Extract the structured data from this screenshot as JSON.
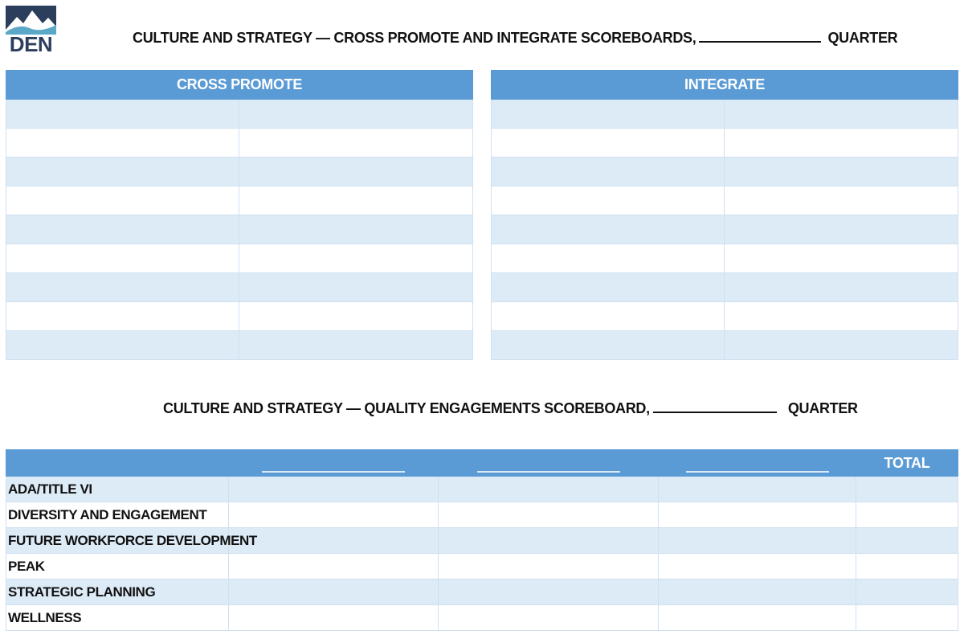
{
  "logo": {
    "text": "DEN",
    "colors": {
      "dark": "#2b3f5c",
      "accent": "#5aa7c7"
    }
  },
  "header": {
    "title_prefix": "CULTURE AND STRATEGY — CROSS PROMOTE AND INTEGRATE SCOREBOARDS,",
    "title_suffix": "QUARTER"
  },
  "cross_promote": {
    "heading": "CROSS PROMOTE",
    "rows": 9,
    "columns": 2
  },
  "integrate": {
    "heading": "INTEGRATE",
    "rows": 9,
    "columns": 2
  },
  "quality": {
    "title_prefix": "CULTURE AND STRATEGY — QUALITY ENGAGEMENTS SCOREBOARD,",
    "title_suffix": "QUARTER",
    "total_label": "TOTAL",
    "rows": [
      "ADA/TITLE VI",
      "DIVERSITY AND ENGAGEMENT",
      "FUTURE WORKFORCE DEVELOPMENT",
      "PEAK",
      "STRATEGIC PLANNING",
      "WELLNESS"
    ]
  },
  "colors": {
    "header_blue": "#5b9bd5",
    "row_shade": "#ddebf7",
    "border": "#cfe0f1"
  }
}
